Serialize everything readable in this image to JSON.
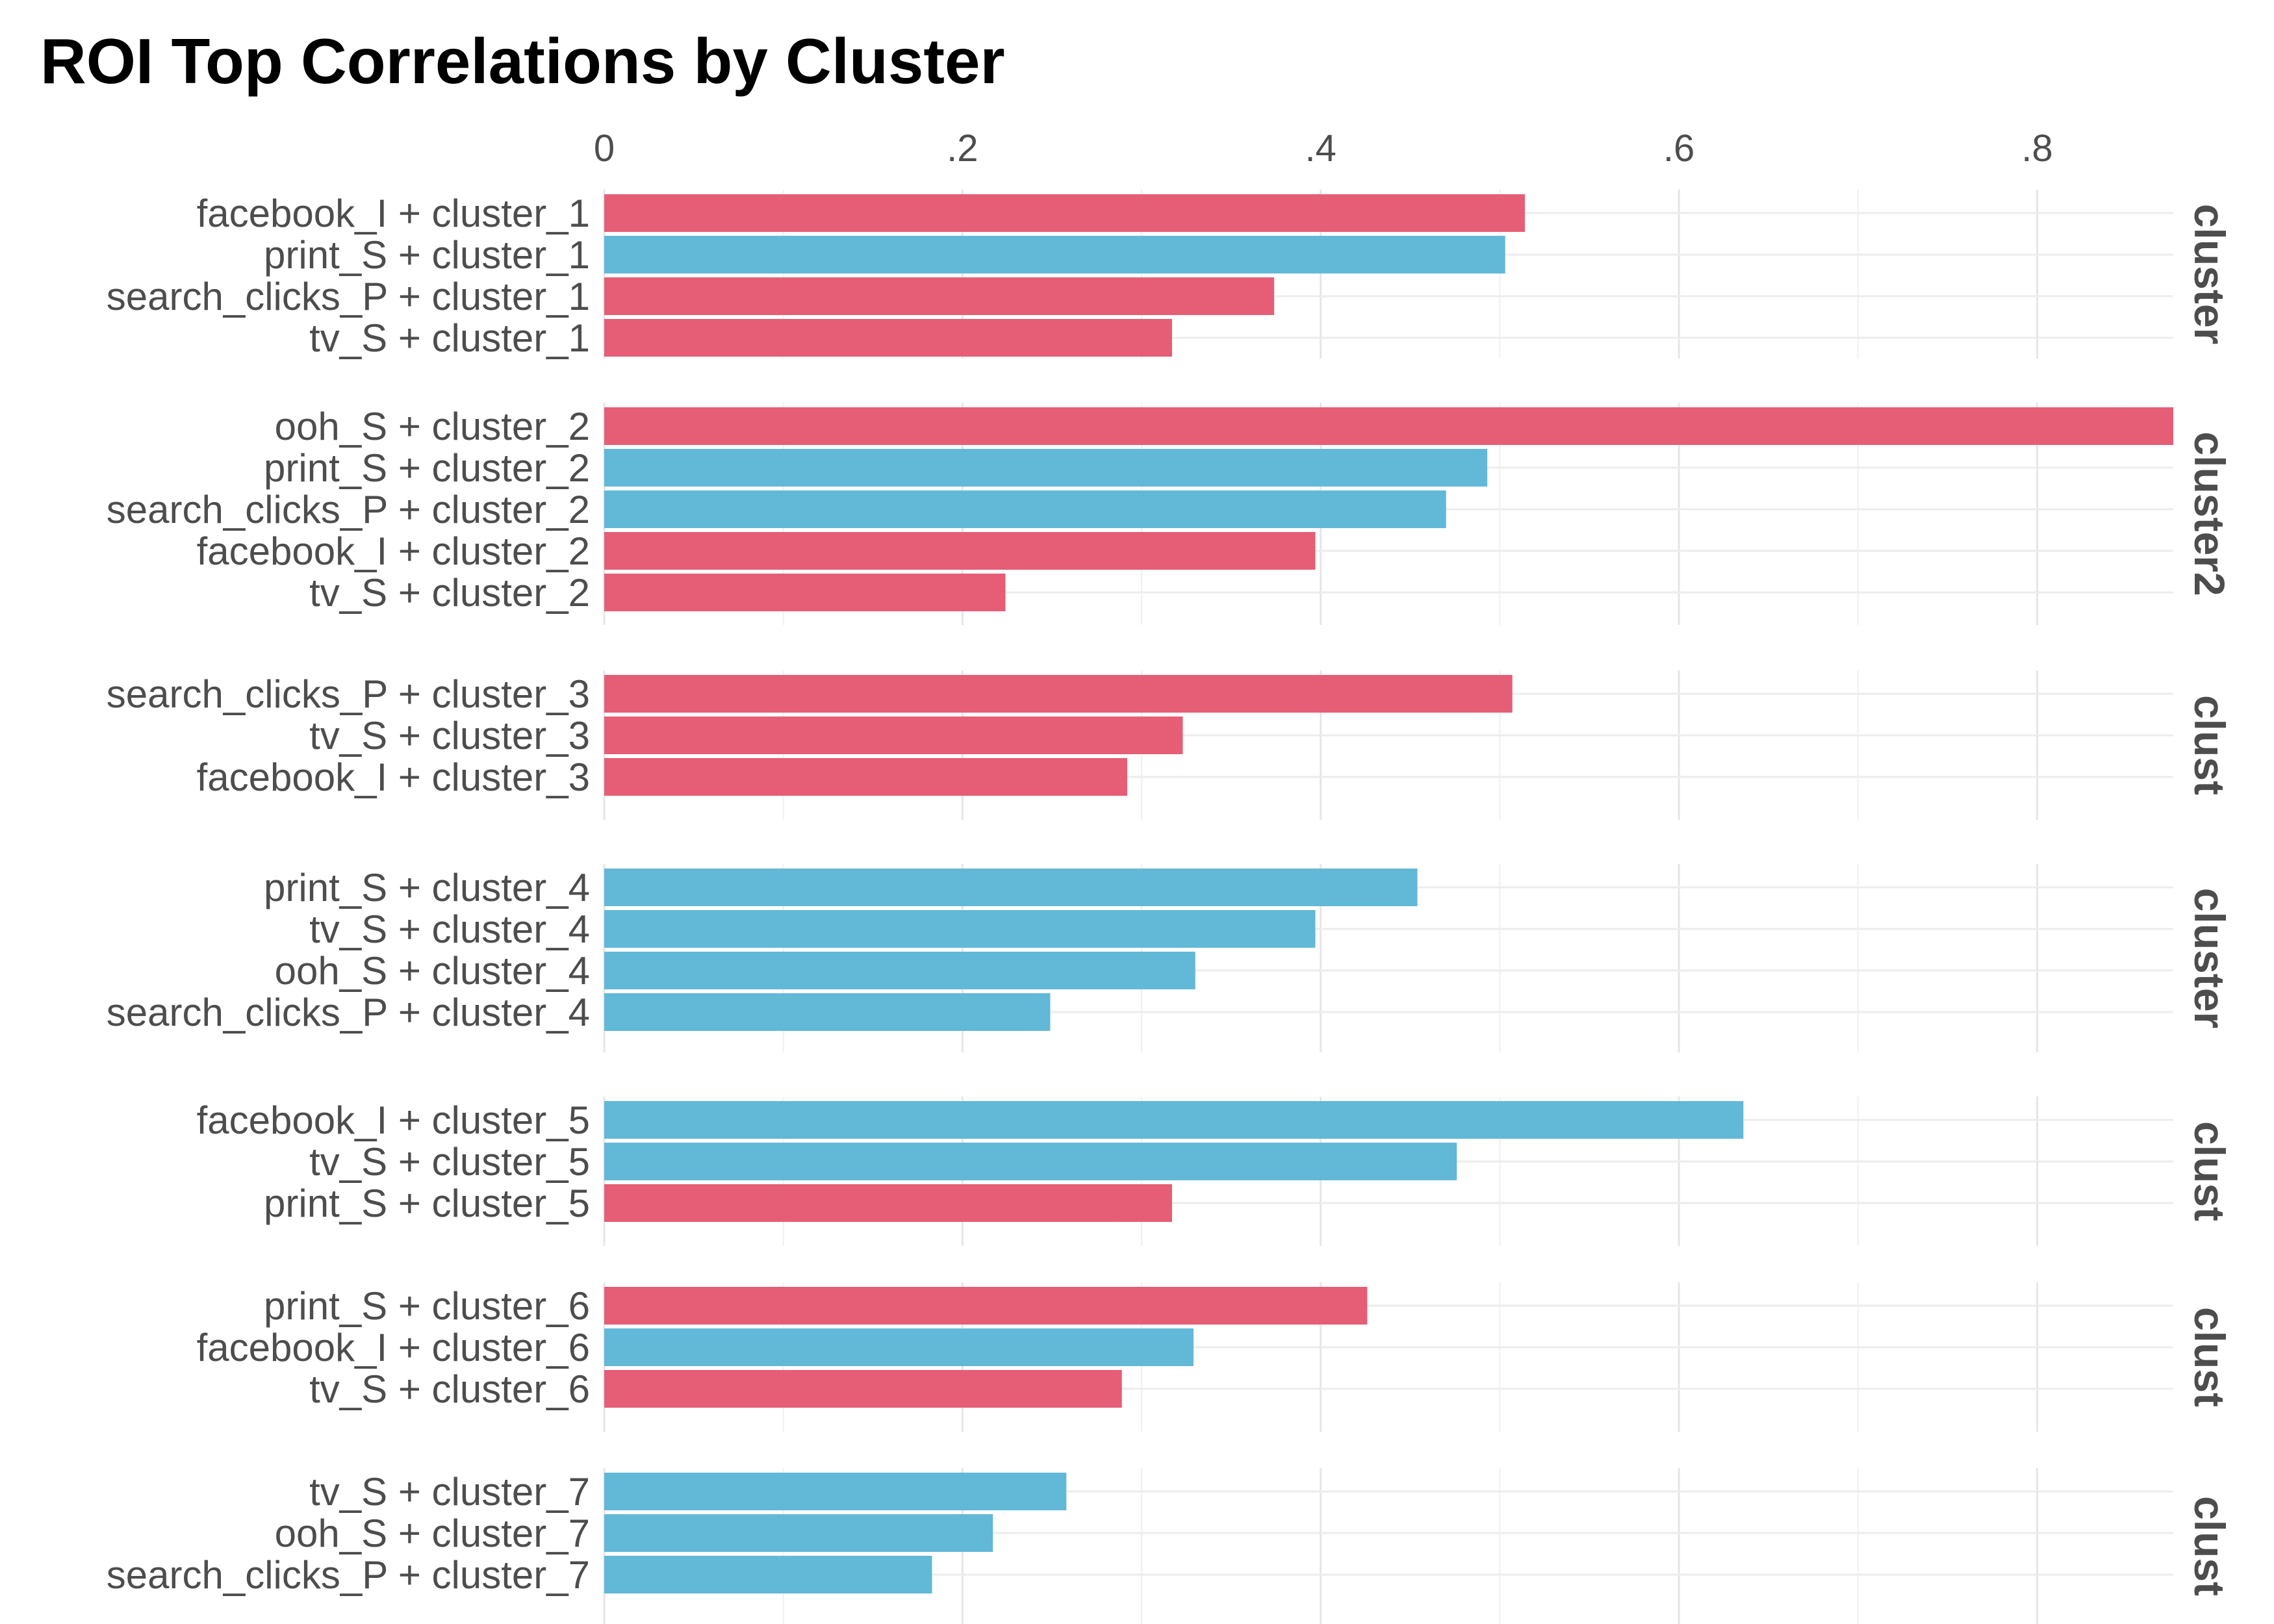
{
  "chart_data": {
    "type": "bar",
    "orientation": "horizontal",
    "title": "ROI Top Correlations by Cluster",
    "xlabel": "",
    "ylabel": "",
    "xlim": [
      0,
      0.876
    ],
    "x_ticks": [
      {
        "value": 0,
        "label": "0"
      },
      {
        "value": 0.2,
        "label": ".2"
      },
      {
        "value": 0.4,
        "label": ".4"
      },
      {
        "value": 0.6,
        "label": ".6"
      },
      {
        "value": 0.8,
        "label": ".8"
      }
    ],
    "grid": true,
    "legend": "none",
    "colors": {
      "negative": "#e65d76",
      "positive": "#62b8d7"
    },
    "facets": [
      {
        "strip": "cluster",
        "bars": [
          {
            "label": "facebook_I + cluster_1",
            "value": 0.514,
            "sign": "negative",
            "text": "-.514"
          },
          {
            "label": "print_S + cluster_1",
            "value": 0.503,
            "sign": "positive",
            "text": ".503"
          },
          {
            "label": "search_clicks_P + cluster_1",
            "value": 0.374,
            "sign": "negative",
            "text": "-.374"
          },
          {
            "label": "tv_S + cluster_1",
            "value": 0.317,
            "sign": "negative",
            "text": "-.317"
          }
        ]
      },
      {
        "strip": "cluster2",
        "bars": [
          {
            "label": "ooh_S + cluster_2",
            "value": 0.876,
            "sign": "negative",
            "text": "-.876"
          },
          {
            "label": "print_S + cluster_2",
            "value": 0.493,
            "sign": "positive",
            "text": ".493"
          },
          {
            "label": "search_clicks_P + cluster_2",
            "value": 0.47,
            "sign": "positive",
            "text": ".47"
          },
          {
            "label": "facebook_I + cluster_2",
            "value": 0.397,
            "sign": "negative",
            "text": "-.397"
          },
          {
            "label": "tv_S + cluster_2",
            "value": 0.224,
            "sign": "negative",
            "text": "-.224"
          }
        ]
      },
      {
        "strip": "clust",
        "bars": [
          {
            "label": "search_clicks_P + cluster_3",
            "value": 0.507,
            "sign": "negative",
            "text": "-.507"
          },
          {
            "label": "tv_S + cluster_3",
            "value": 0.323,
            "sign": "negative",
            "text": "-.323"
          },
          {
            "label": "facebook_I + cluster_3",
            "value": 0.292,
            "sign": "negative",
            "text": "-.292"
          }
        ]
      },
      {
        "strip": "cluster",
        "bars": [
          {
            "label": "print_S + cluster_4",
            "value": 0.454,
            "sign": "positive",
            "text": ".454"
          },
          {
            "label": "tv_S + cluster_4",
            "value": 0.397,
            "sign": "positive",
            "text": ".397"
          },
          {
            "label": "ooh_S + cluster_4",
            "value": 0.33,
            "sign": "positive",
            "text": ".33"
          },
          {
            "label": "search_clicks_P + cluster_4",
            "value": 0.249,
            "sign": "positive",
            "text": ".249"
          }
        ]
      },
      {
        "strip": "clust",
        "bars": [
          {
            "label": "facebook_I + cluster_5",
            "value": 0.636,
            "sign": "positive",
            "text": ".636"
          },
          {
            "label": "tv_S + cluster_5",
            "value": 0.476,
            "sign": "positive",
            "text": ".476"
          },
          {
            "label": "print_S + cluster_5",
            "value": 0.317,
            "sign": "negative",
            "text": "-.317"
          }
        ]
      },
      {
        "strip": "clust",
        "bars": [
          {
            "label": "print_S + cluster_6",
            "value": 0.426,
            "sign": "negative",
            "text": "-.426"
          },
          {
            "label": "facebook_I + cluster_6",
            "value": 0.329,
            "sign": "positive",
            "text": ".329"
          },
          {
            "label": "tv_S + cluster_6",
            "value": 0.289,
            "sign": "negative",
            "text": "-.289"
          }
        ]
      },
      {
        "strip": "clust",
        "bars": [
          {
            "label": "tv_S + cluster_7",
            "value": 0.258,
            "sign": "positive",
            "text": ".258"
          },
          {
            "label": "ooh_S + cluster_7",
            "value": 0.217,
            "sign": "positive",
            "text": ".217"
          },
          {
            "label": "search_clicks_P + cluster_7",
            "value": 0.183,
            "sign": "positive",
            "text": ".183"
          }
        ]
      }
    ]
  }
}
